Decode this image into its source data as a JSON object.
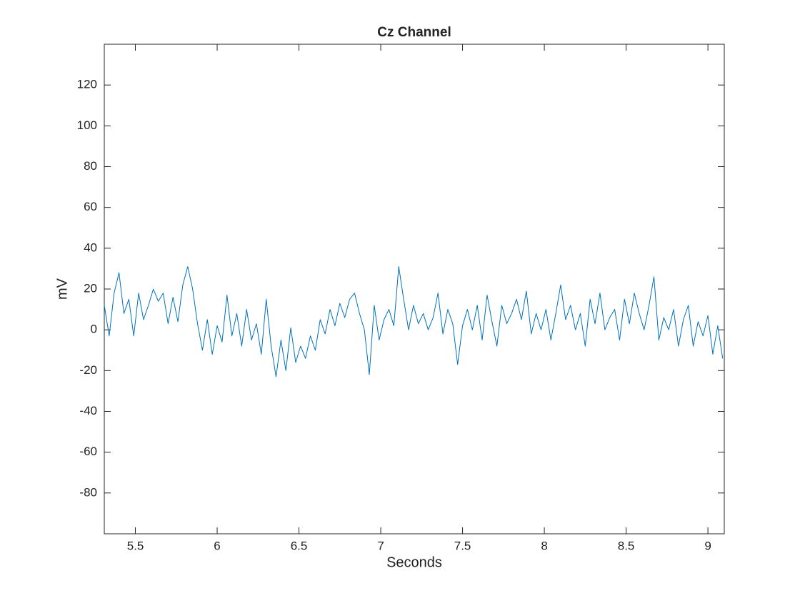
{
  "chart_data": {
    "type": "line",
    "title": "Cz Channel",
    "x_label": "Seconds",
    "y_label": "mV",
    "color": "#0072bd",
    "x": [
      5.31,
      5.34,
      5.37,
      5.4,
      5.43,
      5.46,
      5.49,
      5.52,
      5.55,
      5.58,
      5.61,
      5.64,
      5.67,
      5.7,
      5.73,
      5.76,
      5.79,
      5.82,
      5.85,
      5.88,
      5.91,
      5.94,
      5.97,
      6.0,
      6.03,
      6.06,
      6.09,
      6.12,
      6.15,
      6.18,
      6.21,
      6.24,
      6.27,
      6.3,
      6.33,
      6.36,
      6.39,
      6.42,
      6.45,
      6.48,
      6.51,
      6.54,
      6.57,
      6.6,
      6.63,
      6.66,
      6.69,
      6.72,
      6.75,
      6.78,
      6.81,
      6.84,
      6.87,
      6.9,
      6.93,
      6.96,
      6.99,
      7.02,
      7.05,
      7.08,
      7.11,
      7.14,
      7.17,
      7.2,
      7.23,
      7.26,
      7.29,
      7.32,
      7.35,
      7.38,
      7.41,
      7.44,
      7.47,
      7.5,
      7.53,
      7.56,
      7.59,
      7.62,
      7.65,
      7.68,
      7.71,
      7.74,
      7.77,
      7.8,
      7.83,
      7.86,
      7.89,
      7.92,
      7.95,
      7.98,
      8.01,
      8.04,
      8.07,
      8.1,
      8.13,
      8.16,
      8.19,
      8.22,
      8.25,
      8.28,
      8.31,
      8.34,
      8.37,
      8.4,
      8.43,
      8.46,
      8.49,
      8.52,
      8.55,
      8.58,
      8.61,
      8.64,
      8.67,
      8.7,
      8.73,
      8.76,
      8.79,
      8.82,
      8.85,
      8.88,
      8.91,
      8.94,
      8.97,
      9.0,
      9.03,
      9.06,
      9.09
    ],
    "values": [
      12,
      -3,
      18,
      28,
      8,
      15,
      -3,
      18,
      5,
      12,
      20,
      14,
      18,
      3,
      16,
      4,
      22,
      31,
      20,
      3,
      -10,
      5,
      -12,
      2,
      -6,
      17,
      -3,
      8,
      -8,
      10,
      -5,
      3,
      -12,
      15,
      -8,
      -23,
      -5,
      -20,
      1,
      -16,
      -8,
      -14,
      -3,
      -10,
      5,
      -2,
      10,
      2,
      13,
      6,
      15,
      18,
      8,
      0,
      -22,
      12,
      -5,
      5,
      10,
      2,
      31,
      15,
      0,
      12,
      3,
      8,
      0,
      6,
      18,
      -2,
      10,
      3,
      -17,
      2,
      10,
      0,
      12,
      -5,
      17,
      4,
      -8,
      12,
      3,
      8,
      15,
      5,
      19,
      -2,
      8,
      0,
      10,
      -5,
      8,
      22,
      5,
      12,
      0,
      8,
      -8,
      15,
      3,
      18,
      0,
      6,
      10,
      -5,
      15,
      3,
      18,
      8,
      0,
      12,
      26,
      -5,
      6,
      0,
      10,
      -8,
      5,
      12,
      -8,
      4,
      -3,
      7,
      -12,
      2,
      -14
    ],
    "xlim": [
      5.31,
      9.1
    ],
    "ylim": [
      -100,
      140
    ],
    "xticks": [
      5.5,
      6,
      6.5,
      7,
      7.5,
      8,
      8.5,
      9
    ],
    "yticks": [
      -80,
      -60,
      -40,
      -20,
      0,
      20,
      40,
      60,
      80,
      100,
      120
    ]
  }
}
